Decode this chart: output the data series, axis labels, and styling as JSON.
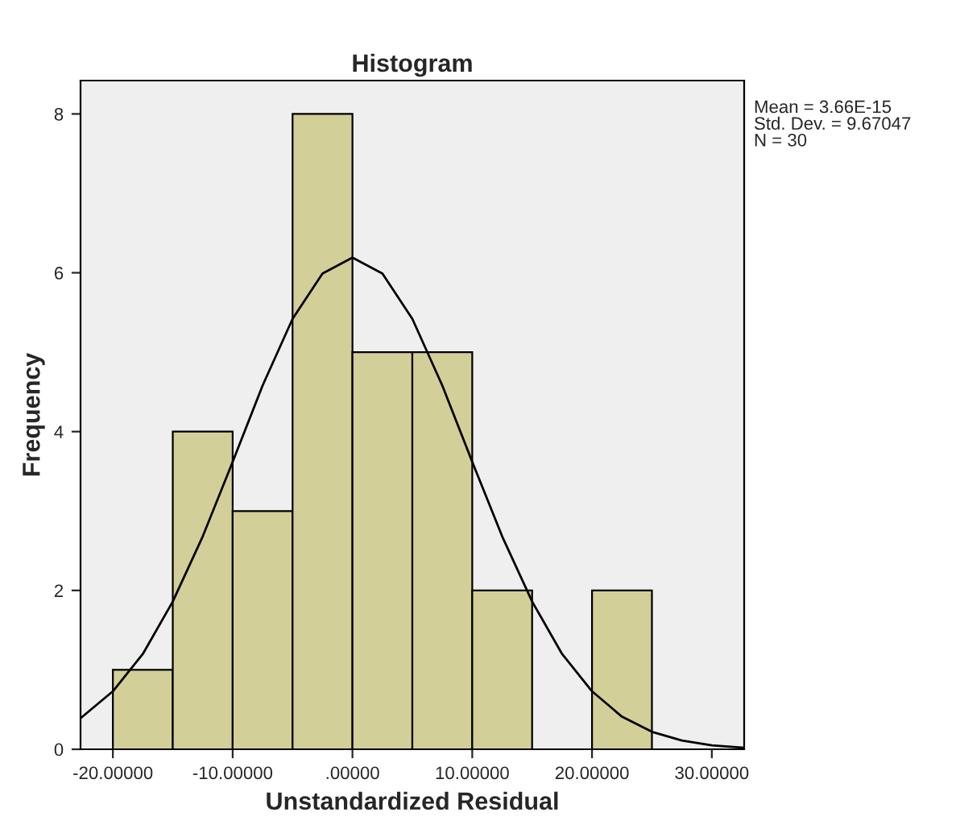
{
  "chart_data": {
    "type": "histogram",
    "title": "Histogram",
    "xlabel": "Unstandardized Residual",
    "ylabel": "Frequency",
    "bins": [
      -20,
      -15,
      -10,
      -5,
      0,
      5,
      10,
      15,
      20,
      25
    ],
    "values": [
      1,
      4,
      3,
      8,
      5,
      5,
      2,
      0,
      2
    ],
    "color": "#d3cf98",
    "series": [
      {
        "type": "line",
        "color": "#000000",
        "x": [
          -22.7,
          -20,
          -17.5,
          -15,
          -12.5,
          -10,
          -7.5,
          -5,
          -2.5,
          0,
          2.5,
          5,
          7.5,
          10,
          12.5,
          15,
          17.5,
          20,
          22.5,
          25,
          27.5,
          30,
          32.7
        ],
        "values": [
          0.39,
          0.73,
          1.2,
          1.86,
          2.68,
          3.62,
          4.58,
          5.42,
          5.99,
          6.19,
          5.99,
          5.42,
          4.58,
          3.62,
          2.68,
          1.86,
          1.2,
          0.73,
          0.41,
          0.22,
          0.11,
          0.05,
          0.02
        ]
      }
    ],
    "xlim": [
      -22.7,
      32.7
    ],
    "ylim": [
      0,
      8.42
    ],
    "xticks": [
      {
        "value": -20,
        "label": "-20.00000"
      },
      {
        "value": -10,
        "label": "-10.00000"
      },
      {
        "value": 0,
        "label": ".00000"
      },
      {
        "value": 10,
        "label": "10.00000"
      },
      {
        "value": 20,
        "label": "20.00000"
      },
      {
        "value": 30,
        "label": "30.00000"
      }
    ],
    "yticks": [
      0,
      2,
      4,
      6,
      8
    ],
    "grid": false,
    "annotations": [
      "Mean = 3.66E-15\nStd. Dev. = 9.67047\nN = 30"
    ]
  }
}
